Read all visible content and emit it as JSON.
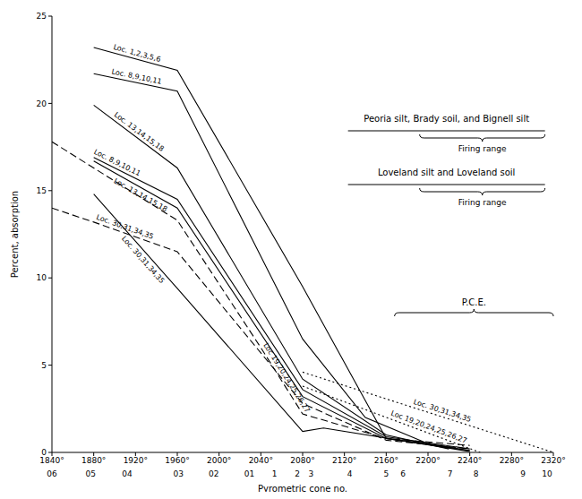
{
  "chart_data": {
    "type": "line",
    "xlabel": "Pyrometric cone no.",
    "ylabel": "Percent, absorption",
    "xlim": [
      1840,
      2320
    ],
    "ylim": [
      0,
      25
    ],
    "xticks": [
      {
        "value": 1840,
        "label": "1840°"
      },
      {
        "value": 1880,
        "label": "1880°"
      },
      {
        "value": 1920,
        "label": "1920°"
      },
      {
        "value": 1960,
        "label": "1960°"
      },
      {
        "value": 2000,
        "label": "2000°"
      },
      {
        "value": 2040,
        "label": "2040°"
      },
      {
        "value": 2080,
        "label": "2080°"
      },
      {
        "value": 2120,
        "label": "2120°"
      },
      {
        "value": 2160,
        "label": "2160°"
      },
      {
        "value": 2200,
        "label": "2200°"
      },
      {
        "value": 2240,
        "label": "2240°"
      },
      {
        "value": 2280,
        "label": "2280°"
      },
      {
        "value": 2320,
        "label": "2320°"
      }
    ],
    "yticks": [
      0,
      5,
      10,
      15,
      20,
      25
    ],
    "cone_ticks": [
      {
        "value": 1840,
        "label": "06"
      },
      {
        "value": 1877,
        "label": "05"
      },
      {
        "value": 1912,
        "label": "04"
      },
      {
        "value": 1961,
        "label": "03"
      },
      {
        "value": 1995,
        "label": "02"
      },
      {
        "value": 2029,
        "label": "01"
      },
      {
        "value": 2053,
        "label": "1"
      },
      {
        "value": 2075,
        "label": "2"
      },
      {
        "value": 2088,
        "label": "3"
      },
      {
        "value": 2125,
        "label": "4"
      },
      {
        "value": 2160,
        "label": "5"
      },
      {
        "value": 2176,
        "label": "6"
      },
      {
        "value": 2221,
        "label": "7"
      },
      {
        "value": 2246,
        "label": "8"
      },
      {
        "value": 2291,
        "label": "9"
      },
      {
        "value": 2314,
        "label": "10"
      }
    ],
    "series": [
      {
        "name": "Loc. 1,2,3,5,6",
        "color": "#000000",
        "line_style": "solid",
        "x": [
          1880,
          1960,
          2080,
          2160,
          2240
        ],
        "values": [
          23.2,
          21.9,
          9.5,
          0.8,
          0.1
        ]
      },
      {
        "name": "Loc. 8,9,10,11",
        "color": "#000000",
        "line_style": "solid",
        "x": [
          1880,
          1960,
          2080,
          2140,
          2200,
          2240
        ],
        "values": [
          21.7,
          20.7,
          6.5,
          2.0,
          0.5,
          0.1
        ]
      },
      {
        "name": "Loc. 13,14,15,18",
        "color": "#000000",
        "line_style": "solid",
        "x": [
          1880,
          1960,
          2080,
          2160,
          2220
        ],
        "values": [
          19.9,
          16.3,
          4.2,
          1.0,
          0.2
        ]
      },
      {
        "name": "Loc. 8,9,10,11",
        "color": "#000000",
        "line_style": "solid",
        "x": [
          1880,
          1960,
          2080,
          2160,
          2240
        ],
        "values": [
          16.9,
          14.5,
          3.6,
          0.9,
          0.2
        ]
      },
      {
        "name": "Loc. 13,14,15,18",
        "color": "#000000",
        "line_style": "solid",
        "x": [
          1880,
          1960,
          2080,
          2160,
          2220
        ],
        "values": [
          16.7,
          14.0,
          3.2,
          0.8,
          0.3
        ]
      },
      {
        "name": "Loc 19,20,24,25,26,27",
        "color": "#000000",
        "line_style": "dashed",
        "x": [
          1840,
          1960,
          2040,
          2080,
          2160,
          2240
        ],
        "values": [
          17.8,
          13.3,
          6.0,
          2.2,
          0.8,
          0.4
        ]
      },
      {
        "name": "Loc. 30,31,34,35",
        "color": "#000000",
        "line_style": "dashed",
        "x": [
          1840,
          1880,
          1960,
          2080,
          2160,
          2240
        ],
        "values": [
          14.0,
          13.2,
          11.5,
          2.8,
          0.7,
          0.2
        ]
      },
      {
        "name": "Loc. 30,31,34,35",
        "color": "#000000",
        "line_style": "solid",
        "x": [
          1880,
          1960,
          2080,
          2100,
          2240
        ],
        "values": [
          14.8,
          9.4,
          1.2,
          1.4,
          0.05
        ]
      },
      {
        "name": "Loc. 30,31,34,35",
        "color": "#000000",
        "line_style": "dotted",
        "x": [
          2080,
          2320
        ],
        "values": [
          4.6,
          0
        ]
      },
      {
        "name": "Loc 19,20,24,25,26,27",
        "color": "#000000",
        "line_style": "dotted",
        "x": [
          2080,
          2250
        ],
        "values": [
          3.8,
          0
        ]
      }
    ],
    "firing_ranges": [
      {
        "text": "Peoria silt, Brady soil, and Bignell silt",
        "range_label": "Firing range",
        "range": [
          2192,
          2312
        ]
      },
      {
        "text": "Loveland silt and Loveland soil",
        "range_label": "Firing range",
        "range": [
          2192,
          2312
        ]
      }
    ],
    "pce": {
      "text": "P.C.E.",
      "range": [
        2168,
        2320
      ]
    }
  }
}
